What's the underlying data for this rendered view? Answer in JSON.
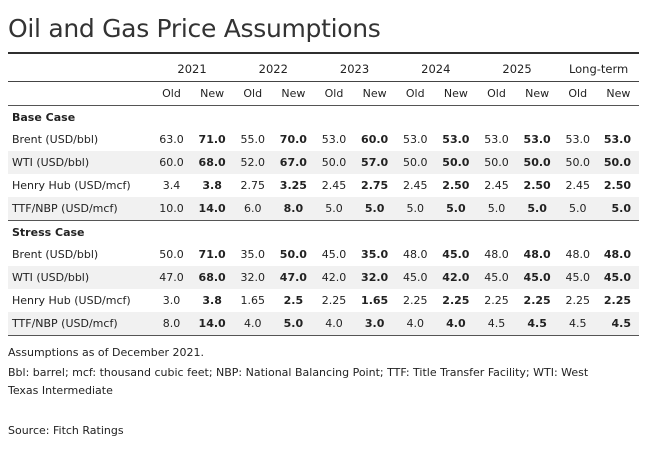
{
  "title": "Oil and Gas Price Assumptions",
  "years": [
    "2021",
    "2022",
    "2023",
    "2024",
    "2025",
    "Long-term"
  ],
  "sub_headers": {
    "old": "Old",
    "new": "New"
  },
  "sections": [
    {
      "name": "Base Case",
      "rows": [
        {
          "label": "Brent (USD/bbl)",
          "values": [
            "63.0",
            "71.0",
            "55.0",
            "70.0",
            "53.0",
            "60.0",
            "53.0",
            "53.0",
            "53.0",
            "53.0",
            "53.0",
            "53.0"
          ]
        },
        {
          "label": "WTI (USD/bbl)",
          "values": [
            "60.0",
            "68.0",
            "52.0",
            "67.0",
            "50.0",
            "57.0",
            "50.0",
            "50.0",
            "50.0",
            "50.0",
            "50.0",
            "50.0"
          ]
        },
        {
          "label": "Henry Hub (USD/mcf)",
          "values": [
            "3.4",
            "3.8",
            "2.75",
            "3.25",
            "2.45",
            "2.75",
            "2.45",
            "2.50",
            "2.45",
            "2.50",
            "2.45",
            "2.50"
          ]
        },
        {
          "label": "TTF/NBP (USD/mcf)",
          "values": [
            "10.0",
            "14.0",
            "6.0",
            "8.0",
            "5.0",
            "5.0",
            "5.0",
            "5.0",
            "5.0",
            "5.0",
            "5.0",
            "5.0"
          ]
        }
      ]
    },
    {
      "name": "Stress Case",
      "rows": [
        {
          "label": "Brent (USD/bbl)",
          "values": [
            "50.0",
            "71.0",
            "35.0",
            "50.0",
            "45.0",
            "35.0",
            "48.0",
            "45.0",
            "48.0",
            "48.0",
            "48.0",
            "48.0"
          ]
        },
        {
          "label": "WTI (USD/bbl)",
          "values": [
            "47.0",
            "68.0",
            "32.0",
            "47.0",
            "42.0",
            "32.0",
            "45.0",
            "42.0",
            "45.0",
            "45.0",
            "45.0",
            "45.0"
          ]
        },
        {
          "label": "Henry Hub (USD/mcf)",
          "values": [
            "3.0",
            "3.8",
            "1.65",
            "2.5",
            "2.25",
            "1.65",
            "2.25",
            "2.25",
            "2.25",
            "2.25",
            "2.25",
            "2.25"
          ]
        },
        {
          "label": "TTF/NBP (USD/mcf)",
          "values": [
            "8.0",
            "14.0",
            "4.0",
            "5.0",
            "4.0",
            "3.0",
            "4.0",
            "4.0",
            "4.5",
            "4.5",
            "4.5",
            "4.5"
          ]
        }
      ]
    }
  ],
  "footnotes": {
    "assumptions": "Assumptions as of December 2021.",
    "abbreviations": "Bbl: barrel; mcf: thousand cubic feet; NBP: National Balancing Point; TTF: Title Transfer Facility; WTI: West Texas Intermediate",
    "source": "Source: Fitch Ratings"
  }
}
